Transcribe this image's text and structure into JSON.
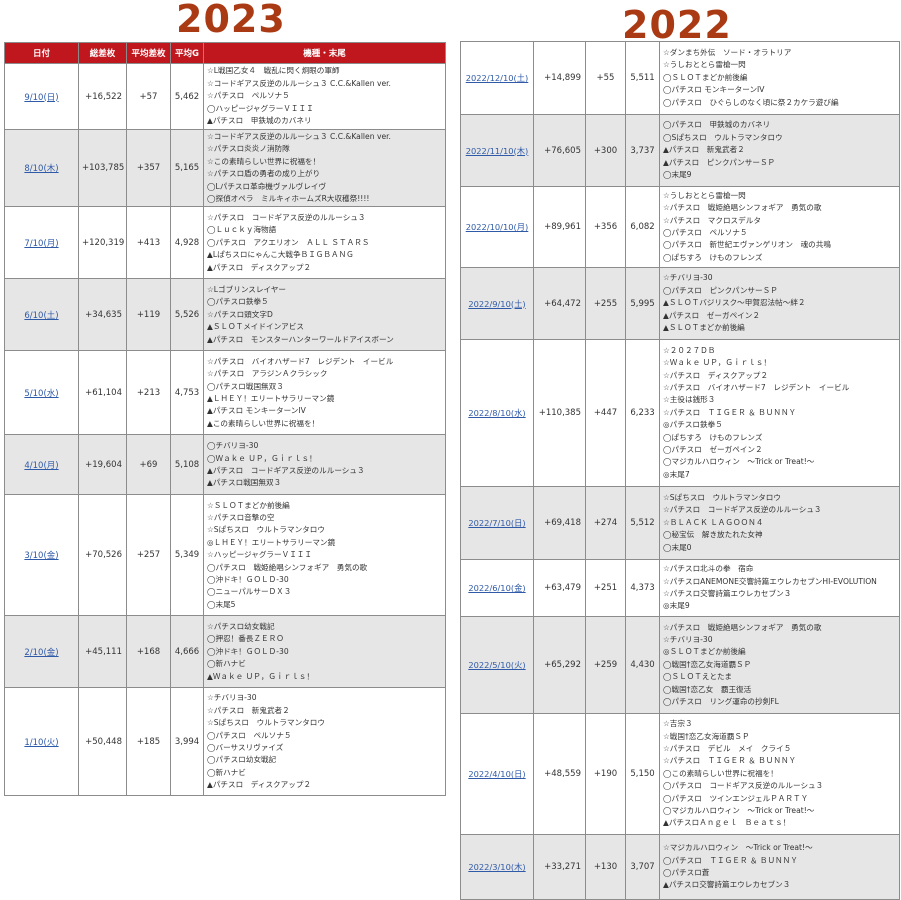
{
  "year_left": "2023",
  "year_right": "2022",
  "headers": {
    "date": "日付",
    "total": "総差枚",
    "avg_diff": "平均差枚",
    "avg_g": "平均G",
    "models": "機種・末尾"
  },
  "table_2023": [
    {
      "date": "9/10(日)",
      "total": "+16,522",
      "avg": "+57",
      "g": "5,462",
      "models": [
        "☆L戦国乙女４　戦乱に閃く炯眼の軍師",
        "☆コードギアス反逆のルルーシュ３ C.C.&Kallen ver.",
        "☆パチスロ　ペルソナ５",
        "◯ハッピージャグラーＶＩＩＩ",
        "▲パチスロ　甲鉄城のカバネリ"
      ]
    },
    {
      "date": "8/10(木)",
      "total": "+103,785",
      "avg": "+357",
      "g": "5,165",
      "models": [
        "☆コードギアス反逆のルルーシュ３ C.C.&Kallen ver.",
        "☆パチスロ炎炎ノ消防隊",
        "☆この素晴らしい世界に祝福を！",
        "☆パチスロ盾の勇者の成り上がり",
        "◯Lパチスロ革命機ヴァルヴレイヴ",
        "◯探偵オペラ　ミルキィホームズR大収穫祭!!!!"
      ]
    },
    {
      "date": "7/10(月)",
      "total": "+120,319",
      "avg": "+413",
      "g": "4,928",
      "models": [
        "☆パチスロ　コードギアス反逆のルルーシュ３",
        "◯Ｌｕｃｋｙ海物語",
        "◯パチスロ　アクエリオン　ＡＬＬ ＳＴＡＲＳ",
        "▲Lぱちスロにゃんこ大戦争ＢＩＧＢＡＮＧ",
        "▲パチスロ　ディスクアップ２"
      ]
    },
    {
      "date": "6/10(土)",
      "total": "+34,635",
      "avg": "+119",
      "g": "5,526",
      "models": [
        "☆Lゴブリンスレイヤー",
        "◯パチスロ鉄拳５",
        "☆パチスロ頭文字D",
        "▲ＳＬＯＴメイドインアビス",
        "▲パチスロ　モンスターハンターワールドアイスボーン"
      ]
    },
    {
      "date": "5/10(水)",
      "total": "+61,104",
      "avg": "+213",
      "g": "4,753",
      "models": [
        "☆パチスロ　バイオハザード7　レジデント　イービル",
        "☆パチスロ　アラジンＡクラシック",
        "◯パチスロ戦国無双３",
        "▲ＬＨＥＹ！エリートサラリーマン鏡",
        "▲パチスロ モンキーターンIV",
        "▲この素晴らしい世界に祝福を！"
      ]
    },
    {
      "date": "4/10(月)",
      "total": "+19,604",
      "avg": "+69",
      "g": "5,108",
      "models": [
        "◯チバリヨ-30",
        "◯Ｗａｋｅ ＵＰ，Ｇｉｒｌｓ！",
        "▲パチスロ　コードギアス反逆のルルーシュ３",
        "▲パチスロ戦国無双３"
      ]
    },
    {
      "date": "3/10(金)",
      "total": "+70,526",
      "avg": "+257",
      "g": "5,349",
      "models": [
        "☆ＳＬＯＴまどか前後編",
        "☆パチスロ音撃の空",
        "☆Sぱちスロ　ウルトラマンタロウ",
        "◎ＬＨＥＹ！エリートサラリーマン鏡",
        "☆ハッピージャグラーＶＩＩＩ",
        "◯パチスロ　戦姫絶唱シンフォギア　勇気の歌",
        "◯沖ドキ！ＧＯＬＤ-30",
        "◯ニューパルサーＤＸ３",
        "◯末尾5"
      ]
    },
    {
      "date": "2/10(金)",
      "total": "+45,111",
      "avg": "+168",
      "g": "4,666",
      "models": [
        "☆パチスロ幼女戦記",
        "◯押忍！番長ＺＥＲＯ",
        "◯沖ドキ！ＧＯＬＤ-30",
        "◯新ハナビ",
        "▲Ｗａｋｅ ＵＰ，Ｇｉｒｌｓ！"
      ]
    },
    {
      "date": "1/10(火)",
      "total": "+50,448",
      "avg": "+185",
      "g": "3,994",
      "models": [
        "☆チバリヨ-30",
        "☆パチスロ　新鬼武者２",
        "☆Sぱちスロ　ウルトラマンタロウ",
        "◯パチスロ　ペルソナ５",
        "◯バーサスリヴァイズ",
        "◯パチスロ幼女戦記",
        "◯新ハナビ",
        "▲パチスロ　ディスクアップ２"
      ]
    }
  ],
  "table_2022": [
    {
      "date": "2022/12/10(土)",
      "total": "+14,899",
      "avg": "+55",
      "g": "5,511",
      "models": [
        "☆ダンまち外伝　ソード・オラトリア",
        "☆うしおととら雷槍一閃",
        "◯ＳＬＯＴまどか前後編",
        "◯パチスロ モンキーターンIV",
        "◯パチスロ　ひぐらしのなく頃に祭２カケラ遊び編"
      ]
    },
    {
      "date": "2022/11/10(木)",
      "total": "+76,605",
      "avg": "+300",
      "g": "3,737",
      "models": [
        "◯パチスロ　甲鉄城のカバネリ",
        "◯Sぱちスロ　ウルトラマンタロウ",
        "▲パチスロ　新鬼武者２",
        "▲パチスロ　ピンクパンサーＳＰ",
        "◯末尾9"
      ]
    },
    {
      "date": "2022/10/10(月)",
      "total": "+89,961",
      "avg": "+356",
      "g": "6,082",
      "models": [
        "☆うしおととら雷槍一閃",
        "☆パチスロ　戦姫絶唱シンフォギア　勇気の歌",
        "☆パチスロ　マクロスデルタ",
        "◯パチスロ　ペルソナ５",
        "◯パチスロ　新世紀エヴァンゲリオン　魂の共鳴",
        "◯ぱちすろ　けものフレンズ"
      ]
    },
    {
      "date": "2022/9/10(土)",
      "total": "+64,472",
      "avg": "+255",
      "g": "5,995",
      "models": [
        "☆チバリヨ-30",
        "◯パチスロ　ピンクパンサーＳＰ",
        "▲ＳＬＯＴバジリスク～甲賀忍法帖～絆２",
        "▲パチスロ　ゼーガペイン２",
        "▲ＳＬＯＴまどか前後編"
      ]
    },
    {
      "date": "2022/8/10(水)",
      "total": "+110,385",
      "avg": "+447",
      "g": "6,233",
      "models": [
        "☆２０２７ＤＢ",
        "☆Ｗａｋｅ ＵＰ，Ｇｉｒｌｓ！",
        "☆パチスロ　ディスクアップ２",
        "☆パチスロ　バイオハザード7　レジデント　イービル",
        "☆主役は銭形３",
        "☆パチスロ　ＴＩＧＥＲ ＆ ＢＵＮＮＹ",
        "◎パチスロ鉄拳５",
        "◯ぱちすろ　けものフレンズ",
        "◯パチスロ　ゼーガペイン２",
        "◯マジカルハロウィン　～Trick or Treat!～",
        "◎末尾7"
      ]
    },
    {
      "date": "2022/7/10(日)",
      "total": "+69,418",
      "avg": "+274",
      "g": "5,512",
      "models": [
        "☆Sぱちスロ　ウルトラマンタロウ",
        "☆パチスロ　コードギアス反逆のルルーシュ３",
        "☆ＢＬＡＣＫ ＬＡＧＯＯＮ４",
        "◯秘宝伝　解き放たれた女神",
        "◯末尾0"
      ]
    },
    {
      "date": "2022/6/10(金)",
      "total": "+63,479",
      "avg": "+251",
      "g": "4,373",
      "models": [
        "☆パチスロ北斗の拳　宿命",
        "☆パチスロANEMONE交響詩篇エウレカセブンHI-EVOLUTION",
        "☆パチスロ交響詩篇エウレカセブン３",
        "◎末尾9"
      ]
    },
    {
      "date": "2022/5/10(火)",
      "total": "+65,292",
      "avg": "+259",
      "g": "4,430",
      "models": [
        "☆パチスロ　戦姫絶唱シンフォギア　勇気の歌",
        "☆チバリヨ-30",
        "◎ＳＬＯＴまどか前後編",
        "◯戦国†恋乙女海道覇ＳＰ",
        "◯ＳＬＯＴえとたま",
        "◯戦国†恋乙女　覇王復活",
        "◯パチスロ　リング運命の抄剣FL"
      ]
    },
    {
      "date": "2022/4/10(日)",
      "total": "+48,559",
      "avg": "+190",
      "g": "5,150",
      "models": [
        "☆吉宗３",
        "☆戦国†恋乙女海道覇ＳＰ",
        "☆パチスロ　デビル　メイ　クライ５",
        "☆パチスロ　ＴＩＧＥＲ ＆ ＢＵＮＮＹ",
        "◯この素晴らしい世界に祝福を！",
        "◯パチスロ　コードギアス反逆のルルーシュ３",
        "◯パチスロ　ツインエンジェルＰＡＲＴＹ",
        "◯マジカルハロウィン　～Trick or Treat!～",
        "▲パチスロＡｎｇｅｌ　Ｂｅａｔｓ！"
      ]
    },
    {
      "date": "2022/3/10(木)",
      "total": "+33,271",
      "avg": "+130",
      "g": "3,707",
      "models": [
        "☆マジカルハロウィン　～Trick or Treat!～",
        "◯パチスロ　ＴＩＧＥＲ ＆ ＢＵＮＮＹ",
        "◯パチスロ蒼",
        "▲パチスロ交響詩篇エウレカセブン３"
      ]
    }
  ]
}
